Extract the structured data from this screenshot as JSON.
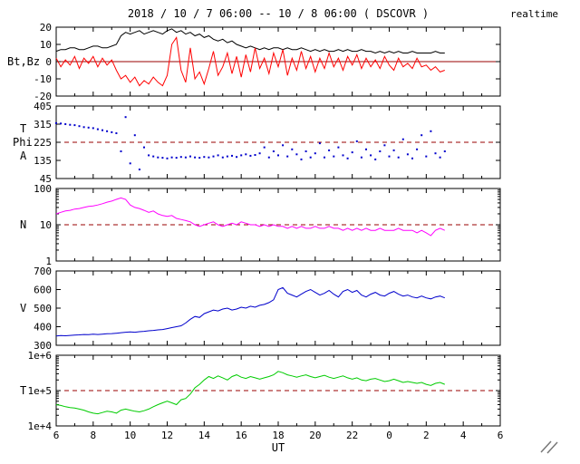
{
  "header": {
    "title": "2018 / 10 / 7  06:00 -- 10 / 8  06:00 ( DSCOVR )",
    "realtime_label": "realtime"
  },
  "colors": {
    "realtime": "#ff0000",
    "threshold": "#990000",
    "frame": "#000000"
  },
  "xaxis": {
    "label": "UT",
    "minor_step": 1,
    "range_hours": [
      6,
      30
    ],
    "ticks": [
      {
        "v": 6,
        "label": "6"
      },
      {
        "v": 8,
        "label": "8"
      },
      {
        "v": 10,
        "label": "10"
      },
      {
        "v": 12,
        "label": "12"
      },
      {
        "v": 14,
        "label": "14"
      },
      {
        "v": 16,
        "label": "16"
      },
      {
        "v": 18,
        "label": "18"
      },
      {
        "v": 20,
        "label": "20"
      },
      {
        "v": 22,
        "label": "22"
      },
      {
        "v": 24,
        "label": "0"
      },
      {
        "v": 26,
        "label": "2"
      },
      {
        "v": 28,
        "label": "4"
      },
      {
        "v": 30,
        "label": "6"
      }
    ]
  },
  "chart_data": [
    {
      "type": "line",
      "ylabel": "Bt,Bz",
      "yscale": "linear",
      "ylim": [
        -20,
        20
      ],
      "yticks": [
        {
          "v": 20,
          "label": "20"
        },
        {
          "v": 10,
          "label": "10"
        },
        {
          "v": 0,
          "label": "0"
        },
        {
          "v": -10,
          "label": "-10"
        },
        {
          "v": -20,
          "label": "-20"
        }
      ],
      "hlines": [
        {
          "v": 0,
          "dash": false,
          "color": "#990000"
        }
      ],
      "x_start": 6,
      "x_step": 0.25,
      "series": [
        {
          "name": "Bt",
          "color": "#000000",
          "mode": "line",
          "values": [
            6,
            7,
            7,
            8,
            8,
            7,
            7,
            8,
            9,
            9,
            8,
            8,
            9,
            10,
            15,
            17,
            16,
            17,
            18,
            16,
            17,
            18,
            17,
            16,
            18,
            19,
            17,
            18,
            16,
            17,
            15,
            16,
            14,
            15,
            13,
            12,
            13,
            11,
            12,
            10,
            9,
            8,
            9,
            8,
            7,
            8,
            7,
            8,
            8,
            7,
            8,
            7,
            7,
            8,
            7,
            6,
            7,
            6,
            7,
            6,
            6,
            7,
            6,
            7,
            6,
            6,
            7,
            6,
            6,
            5,
            6,
            5,
            6,
            5,
            6,
            5,
            5,
            6,
            5,
            5,
            5,
            5,
            6,
            5,
            5
          ]
        },
        {
          "name": "Bz",
          "color": "#ff0000",
          "mode": "line",
          "values": [
            2,
            -3,
            1,
            -2,
            3,
            -4,
            2,
            -1,
            3,
            -3,
            2,
            -2,
            1,
            -5,
            -10,
            -8,
            -12,
            -9,
            -14,
            -11,
            -13,
            -9,
            -12,
            -14,
            -8,
            10,
            14,
            -5,
            -12,
            8,
            -10,
            -6,
            -13,
            -4,
            6,
            -8,
            -3,
            5,
            -7,
            3,
            -9,
            4,
            -6,
            8,
            -4,
            2,
            -7,
            5,
            -3,
            7,
            -8,
            2,
            -5,
            6,
            -4,
            3,
            -6,
            2,
            -4,
            5,
            -3,
            2,
            -5,
            3,
            -2,
            4,
            -4,
            2,
            -3,
            1,
            -4,
            3,
            -2,
            -5,
            2,
            -3,
            -1,
            -4,
            2,
            -3,
            -2,
            -5,
            -3,
            -6,
            -5
          ]
        }
      ]
    },
    {
      "type": "scatter",
      "ylabel_lines": [
        "T",
        "Phi",
        "A"
      ],
      "yscale": "linear",
      "ylim": [
        45,
        405
      ],
      "yticks": [
        {
          "v": 405,
          "label": "405"
        },
        {
          "v": 315,
          "label": "315"
        },
        {
          "v": 225,
          "label": "225"
        },
        {
          "v": 135,
          "label": "135"
        },
        {
          "v": 45,
          "label": "45"
        }
      ],
      "hlines": [
        {
          "v": 225,
          "dash": true,
          "color": "#990000"
        }
      ],
      "x_start": 6,
      "x_step": 0.25,
      "series": [
        {
          "name": "Phi",
          "color": "#0000cc",
          "mode": "dots",
          "values": [
            320,
            318,
            315,
            312,
            310,
            305,
            300,
            298,
            295,
            290,
            285,
            280,
            275,
            270,
            180,
            350,
            120,
            260,
            90,
            200,
            160,
            155,
            150,
            148,
            145,
            150,
            148,
            152,
            150,
            155,
            150,
            148,
            152,
            150,
            155,
            160,
            150,
            155,
            158,
            152,
            160,
            165,
            158,
            162,
            170,
            200,
            150,
            180,
            160,
            210,
            155,
            190,
            165,
            140,
            180,
            150,
            170,
            220,
            150,
            185,
            155,
            200,
            160,
            145,
            175,
            230,
            150,
            190,
            160,
            140,
            180,
            210,
            155,
            185,
            150,
            240,
            165,
            145,
            190,
            260,
            155,
            280,
            170,
            150,
            180
          ]
        }
      ]
    },
    {
      "type": "line",
      "ylabel": "N",
      "yscale": "log",
      "ylim": [
        1,
        100
      ],
      "yticks": [
        {
          "v": 100,
          "label": "100"
        },
        {
          "v": 10,
          "label": "10"
        },
        {
          "v": 1,
          "label": "1"
        }
      ],
      "hlines": [
        {
          "v": 10,
          "dash": true,
          "color": "#990000"
        }
      ],
      "x_start": 6,
      "x_step": 0.25,
      "series": [
        {
          "name": "N",
          "color": "#ff00ff",
          "mode": "line",
          "values": [
            20,
            22,
            24,
            25,
            27,
            28,
            30,
            32,
            33,
            35,
            38,
            42,
            45,
            50,
            55,
            50,
            35,
            30,
            28,
            25,
            22,
            24,
            20,
            18,
            17,
            18,
            15,
            14,
            13,
            12,
            10,
            9,
            10,
            11,
            12,
            10,
            9,
            10,
            11,
            10,
            12,
            11,
            10,
            10,
            9,
            10,
            9,
            10,
            9,
            9,
            8,
            9,
            8,
            9,
            8,
            8,
            9,
            8,
            8,
            9,
            8,
            8,
            7,
            8,
            7,
            8,
            7,
            8,
            7,
            7,
            8,
            7,
            7,
            7,
            8,
            7,
            7,
            7,
            6,
            7,
            6,
            5,
            7,
            8,
            7
          ]
        }
      ]
    },
    {
      "type": "line",
      "ylabel": "V",
      "yscale": "linear",
      "ylim": [
        300,
        700
      ],
      "yticks": [
        {
          "v": 700,
          "label": "700"
        },
        {
          "v": 600,
          "label": "600"
        },
        {
          "v": 500,
          "label": "500"
        },
        {
          "v": 400,
          "label": "400"
        },
        {
          "v": 300,
          "label": "300"
        }
      ],
      "hlines": [],
      "x_start": 6,
      "x_step": 0.25,
      "series": [
        {
          "name": "V",
          "color": "#0000cc",
          "mode": "line",
          "values": [
            350,
            352,
            351,
            353,
            355,
            356,
            358,
            357,
            360,
            358,
            360,
            362,
            363,
            365,
            368,
            370,
            372,
            370,
            373,
            375,
            378,
            380,
            383,
            385,
            390,
            395,
            400,
            405,
            420,
            440,
            455,
            450,
            470,
            480,
            490,
            485,
            495,
            500,
            490,
            495,
            505,
            500,
            510,
            505,
            515,
            520,
            530,
            545,
            600,
            610,
            580,
            570,
            560,
            575,
            590,
            600,
            585,
            570,
            580,
            595,
            575,
            560,
            590,
            600,
            585,
            595,
            570,
            560,
            575,
            585,
            570,
            565,
            580,
            590,
            575,
            565,
            570,
            560,
            555,
            565,
            555,
            550,
            560,
            565,
            555
          ]
        }
      ]
    },
    {
      "type": "line",
      "ylabel": "T",
      "yscale": "log",
      "ylim": [
        10000.0,
        1000000.0
      ],
      "yticks": [
        {
          "v": 1000000.0,
          "label": "1e+6"
        },
        {
          "v": 100000.0,
          "label": "1e+5"
        },
        {
          "v": 10000.0,
          "label": "1e+4"
        }
      ],
      "hlines": [
        {
          "v": 100000.0,
          "dash": true,
          "color": "#990000"
        }
      ],
      "x_start": 6,
      "x_step": 0.25,
      "series": [
        {
          "name": "T",
          "color": "#00cc00",
          "mode": "line",
          "values": [
            40000.0,
            38000.0,
            35000.0,
            33000.0,
            32000.0,
            30000.0,
            28000.0,
            25000.0,
            23000.0,
            22000.0,
            24000.0,
            26000.0,
            25000.0,
            23000.0,
            28000.0,
            30000.0,
            28000.0,
            26000.0,
            25000.0,
            27000.0,
            30000.0,
            35000.0,
            40000.0,
            45000.0,
            50000.0,
            45000.0,
            40000.0,
            55000.0,
            60000.0,
            80000.0,
            120000.0,
            150000.0,
            200000.0,
            250000.0,
            220000.0,
            260000.0,
            230000.0,
            200000.0,
            250000.0,
            280000.0,
            240000.0,
            220000.0,
            250000.0,
            230000.0,
            210000.0,
            230000.0,
            250000.0,
            280000.0,
            350000.0,
            320000.0,
            280000.0,
            260000.0,
            240000.0,
            260000.0,
            280000.0,
            250000.0,
            230000.0,
            250000.0,
            270000.0,
            240000.0,
            220000.0,
            240000.0,
            260000.0,
            230000.0,
            210000.0,
            230000.0,
            200000.0,
            190000.0,
            210000.0,
            220000.0,
            200000.0,
            180000.0,
            190000.0,
            210000.0,
            190000.0,
            170000.0,
            180000.0,
            170000.0,
            160000.0,
            170000.0,
            150000.0,
            140000.0,
            160000.0,
            170000.0,
            150000.0
          ]
        }
      ]
    }
  ]
}
